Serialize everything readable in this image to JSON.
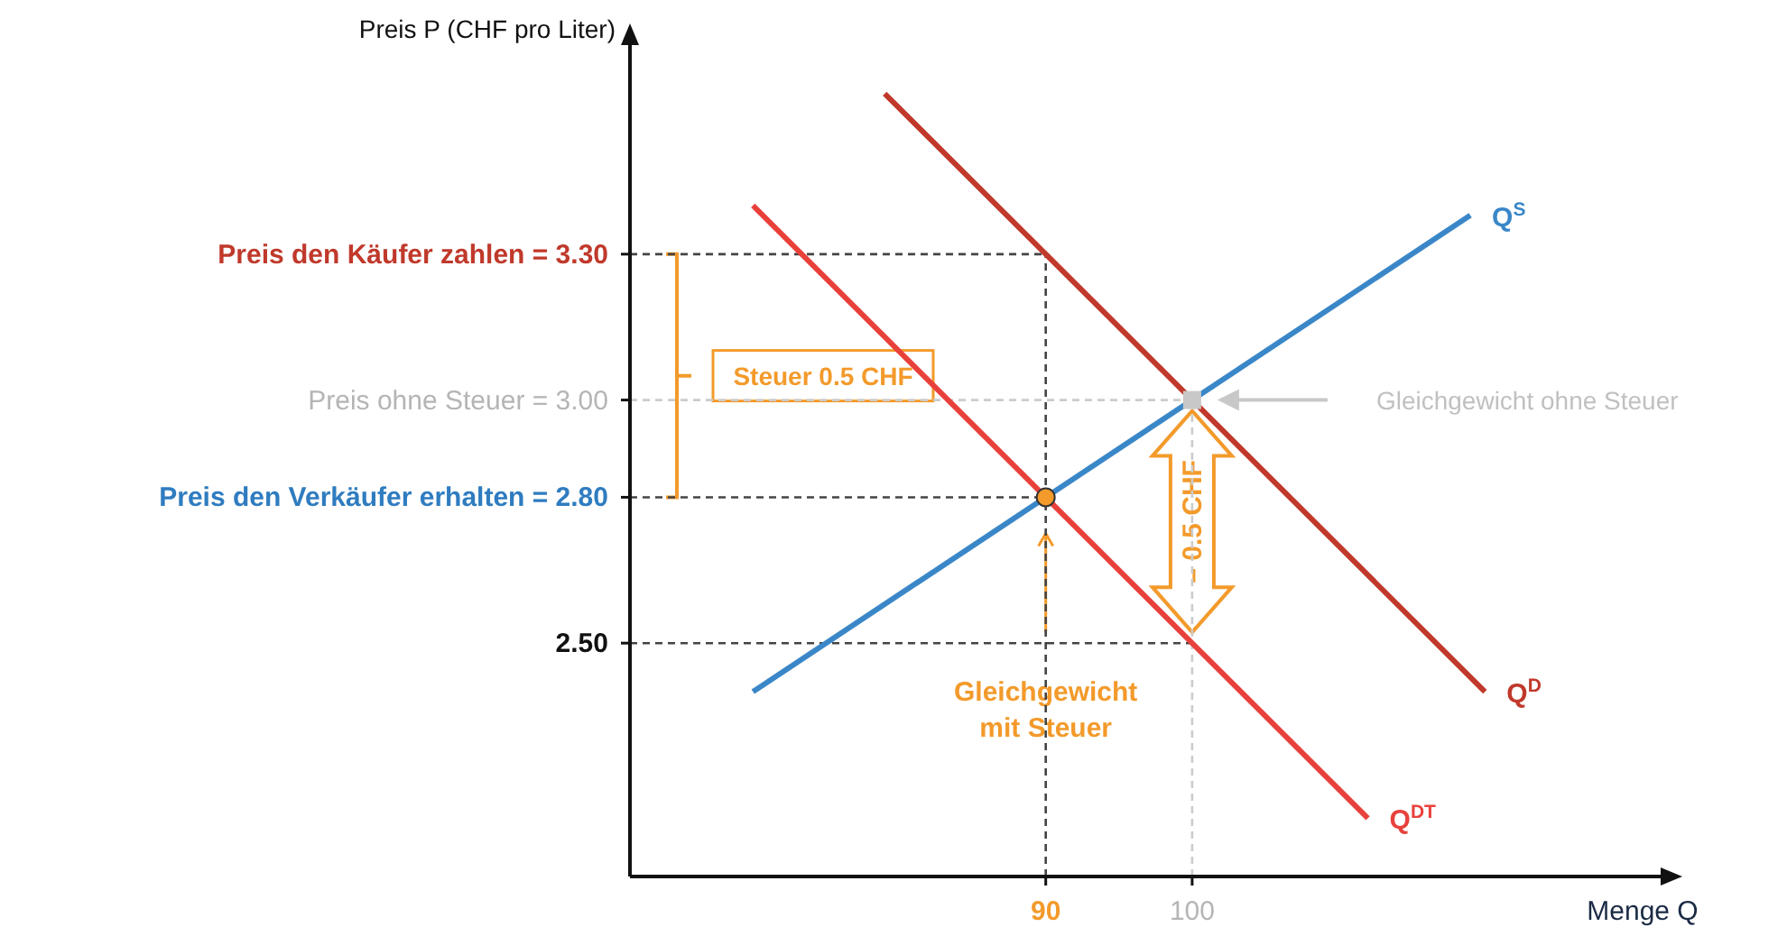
{
  "chart_data": {
    "type": "line",
    "xlabel": "Menge Q",
    "ylabel": "Preis P (CHF pro Liter)",
    "xlim": [
      61.6,
      132
    ],
    "ylim": [
      2.02,
      3.73
    ],
    "xticks": [
      90,
      100
    ],
    "yticks": [
      {
        "value": 3.3,
        "label": "Preis den Käufer zahlen  =  3.30"
      },
      {
        "value": 3.0,
        "label": "Preis ohne Steuer  =  3.00"
      },
      {
        "value": 2.8,
        "label": "Preis den Verkäufer erhalten  =  2.80"
      },
      {
        "value": 2.5,
        "label": "2.50"
      }
    ],
    "series": [
      {
        "name": "Q$^{S}$",
        "color": "#3a87c8",
        "x": [
          70,
          119
        ],
        "values": [
          2.4,
          3.38
        ]
      },
      {
        "name": "Q$^{D}$",
        "color": "#c0392b",
        "x": [
          79,
          120
        ],
        "values": [
          3.63,
          2.4
        ]
      },
      {
        "name": "Q$^{DT}$",
        "color": "#e8413c",
        "x": [
          70,
          112
        ],
        "values": [
          3.4,
          2.14
        ]
      },
      {
        "type": "scatter",
        "marker": "circle",
        "color": "#f39a2b",
        "x": [
          90
        ],
        "values": [
          2.8
        ]
      },
      {
        "type": "scatter",
        "marker": "square",
        "color": "#c8c8c8",
        "x": [
          100
        ],
        "values": [
          3.0
        ]
      }
    ],
    "ref_lines": [
      {
        "axis": "y",
        "value": 3.3,
        "color": "#444444",
        "line_style": "dashed"
      },
      {
        "axis": "y",
        "value": 3.0,
        "color": "#cccccc",
        "line_style": "dashed"
      },
      {
        "axis": "y",
        "value": 2.8,
        "color": "#444444",
        "line_style": "dashed"
      },
      {
        "axis": "y",
        "value": 2.5,
        "color": "#444444",
        "line_style": "dashed"
      },
      {
        "axis": "x",
        "value": 90,
        "color": "#444444",
        "line_style": "dashed"
      },
      {
        "axis": "x",
        "value": 100,
        "color": "#cccccc",
        "line_style": "dashed"
      }
    ],
    "annotations": [
      "Steuer 0.5 CHF",
      "Gleichgewicht ohne Steuer",
      "Gleichgewicht mit Steuer",
      "– 0.5 CHF"
    ]
  }
}
